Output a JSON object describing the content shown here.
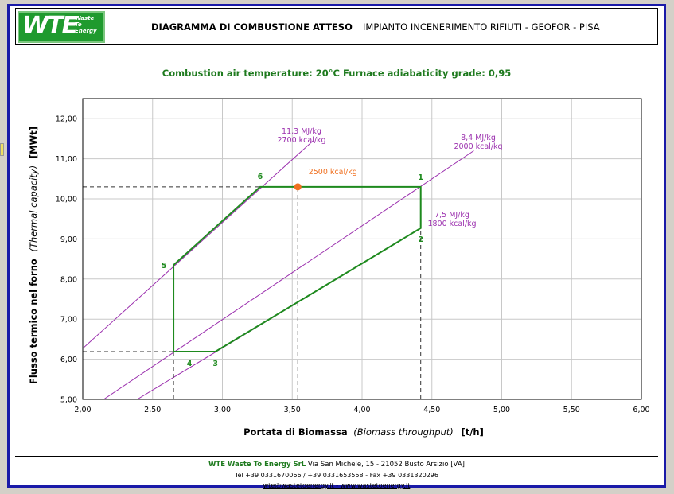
{
  "header": {
    "logo_text": "WTE",
    "logo_sub": "Waste\nTo\nEnergy",
    "title": "DIAGRAMMA DI COMBUSTIONE ATTESO",
    "subtitle": "IMPIANTO INCENERIMENTO RIFIUTI - GEOFOR - PISA"
  },
  "chart_data": {
    "type": "line",
    "subtitle": "Combustion air temperature: 20°C   Furnace adiabaticity grade: 0,95",
    "xlabel_main": "Portata di Biomassa",
    "xlabel_italic": "(Biomass throughput)",
    "xlabel_unit": "[t/h]",
    "ylabel_main": "Flusso termico nel forno",
    "ylabel_italic": "(Thermal capacity)",
    "ylabel_unit": "[MWt]",
    "xlim": [
      2.0,
      6.0
    ],
    "ylim": [
      5.0,
      12.5
    ],
    "xticks": [
      2.0,
      2.5,
      3.0,
      3.5,
      4.0,
      4.5,
      5.0,
      5.5,
      6.0
    ],
    "xtick_labels": [
      "2,00",
      "2,50",
      "3,00",
      "3,50",
      "4,00",
      "4,50",
      "5,00",
      "5,50",
      "6,00"
    ],
    "yticks": [
      5,
      6,
      7,
      8,
      9,
      10,
      11,
      12
    ],
    "ytick_labels": [
      "5,00",
      "6,00",
      "7,00",
      "8,00",
      "9,00",
      "10,00",
      "11,00",
      "12,00"
    ],
    "grid": true,
    "iso_lines": [
      {
        "label1": "11,3 MJ/kg",
        "label2": "2700 kcal/kg",
        "x": [
          2.0,
          3.65
        ],
        "y": [
          6.27,
          11.45
        ],
        "color": "#9b2fae"
      },
      {
        "label1": "8,4 MJ/kg",
        "label2": "2000 kcal/kg",
        "x": [
          2.15,
          4.8
        ],
        "y": [
          5.0,
          11.2
        ],
        "color": "#9b2fae"
      },
      {
        "label1": "7,5 MJ/kg",
        "label2": "1800 kcal/kg",
        "x": [
          2.39,
          4.42
        ],
        "y": [
          5.0,
          9.27
        ],
        "color": "#9b2fae"
      }
    ],
    "envelope": {
      "color": "#1e8a1e",
      "points": [
        {
          "label": "1",
          "x": 4.42,
          "y": 10.3
        },
        {
          "label": "2",
          "x": 4.42,
          "y": 9.27
        },
        {
          "label": "3",
          "x": 2.95,
          "y": 6.19
        },
        {
          "label": "4",
          "x": 2.65,
          "y": 6.19
        },
        {
          "label": "5",
          "x": 2.65,
          "y": 8.35
        },
        {
          "label": "6",
          "x": 3.27,
          "y": 10.3
        }
      ]
    },
    "design_point": {
      "label": "2500 kcal/kg",
      "x": 3.54,
      "y": 10.3,
      "color": "#f07020"
    },
    "dashed_guides": [
      {
        "x": [
          2.0,
          3.27
        ],
        "y": [
          10.3,
          10.3
        ]
      },
      {
        "x": [
          2.0,
          2.65
        ],
        "y": [
          6.19,
          6.19
        ]
      },
      {
        "x": [
          2.65,
          2.65
        ],
        "y": [
          5.0,
          6.19
        ]
      },
      {
        "x": [
          3.54,
          3.54
        ],
        "y": [
          5.0,
          10.3
        ]
      },
      {
        "x": [
          4.42,
          4.42
        ],
        "y": [
          5.0,
          9.27
        ]
      }
    ]
  },
  "footer": {
    "company": "WTE Waste To Energy SrL",
    "address": " Via San Michele, 15 - 21052 Busto Arsizio [VA]",
    "phones": "Tel +39 0331670066 / +39 0331653558 - Fax +39 0331320296",
    "contacts": "wte@wastetoenergy.it - www.wastetoenergy.it"
  }
}
